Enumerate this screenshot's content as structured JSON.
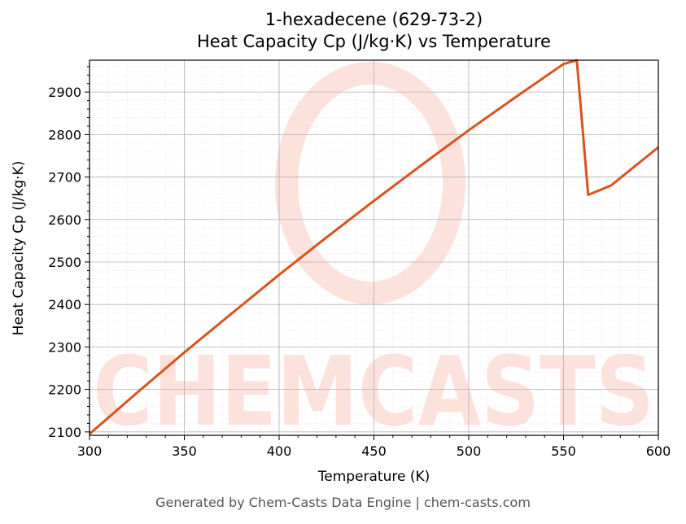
{
  "chart_data": {
    "type": "line",
    "title": "1-hexadecene (629-73-2)",
    "subtitle": "Heat Capacity Cp (J/kg·K) vs Temperature",
    "xlabel": "Temperature (K)",
    "ylabel": "Heat Capacity Cp (J/kg·K)",
    "xlim": [
      300,
      600
    ],
    "ylim": [
      2092,
      2975
    ],
    "xticks": [
      300,
      350,
      400,
      450,
      500,
      550,
      600
    ],
    "yticks": [
      2100,
      2200,
      2300,
      2400,
      2500,
      2600,
      2700,
      2800,
      2900
    ],
    "grid": true,
    "legend": "none",
    "series": [
      {
        "color": "#d9531e",
        "x": [
          300,
          325,
          350,
          375,
          400,
          425,
          450,
          475,
          500,
          525,
          550,
          557,
          563,
          575,
          600
        ],
        "y": [
          2095,
          2192,
          2287,
          2379,
          2470,
          2558,
          2644,
          2728,
          2810,
          2889,
          2966,
          2975,
          2658,
          2680,
          2770
        ]
      }
    ]
  },
  "watermark": {
    "text": "CHEMCASTS",
    "color": "#fde2dc"
  },
  "footer": "Generated by Chem-Casts Data Engine | chem-casts.com"
}
